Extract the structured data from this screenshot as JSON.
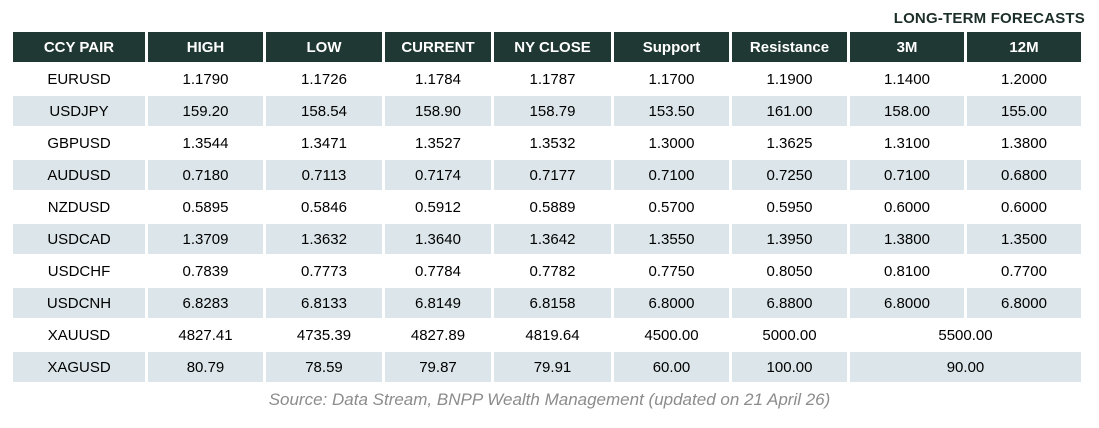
{
  "header_note": "LONG-TERM FORECASTS",
  "chart_data": {
    "type": "table",
    "columns": [
      "CCY PAIR",
      "HIGH",
      "LOW",
      "CURRENT",
      "NY CLOSE",
      "Support",
      "Resistance",
      "3M",
      "12M"
    ],
    "rows": [
      {
        "pair": "EURUSD",
        "high": "1.1790",
        "low": "1.1726",
        "current": "1.1784",
        "ny_close": "1.1787",
        "support": "1.1700",
        "resistance": "1.1900",
        "forecast_3m": "1.1400",
        "forecast_12m": "1.2000"
      },
      {
        "pair": "USDJPY",
        "high": "159.20",
        "low": "158.54",
        "current": "158.90",
        "ny_close": "158.79",
        "support": "153.50",
        "resistance": "161.00",
        "forecast_3m": "158.00",
        "forecast_12m": "155.00"
      },
      {
        "pair": "GBPUSD",
        "high": "1.3544",
        "low": "1.3471",
        "current": "1.3527",
        "ny_close": "1.3532",
        "support": "1.3000",
        "resistance": "1.3625",
        "forecast_3m": "1.3100",
        "forecast_12m": "1.3800"
      },
      {
        "pair": "AUDUSD",
        "high": "0.7180",
        "low": "0.7113",
        "current": "0.7174",
        "ny_close": "0.7177",
        "support": "0.7100",
        "resistance": "0.7250",
        "forecast_3m": "0.7100",
        "forecast_12m": "0.6800"
      },
      {
        "pair": "NZDUSD",
        "high": "0.5895",
        "low": "0.5846",
        "current": "0.5912",
        "ny_close": "0.5889",
        "support": "0.5700",
        "resistance": "0.5950",
        "forecast_3m": "0.6000",
        "forecast_12m": "0.6000"
      },
      {
        "pair": "USDCAD",
        "high": "1.3709",
        "low": "1.3632",
        "current": "1.3640",
        "ny_close": "1.3642",
        "support": "1.3550",
        "resistance": "1.3950",
        "forecast_3m": "1.3800",
        "forecast_12m": "1.3500"
      },
      {
        "pair": "USDCHF",
        "high": "0.7839",
        "low": "0.7773",
        "current": "0.7784",
        "ny_close": "0.7782",
        "support": "0.7750",
        "resistance": "0.8050",
        "forecast_3m": "0.8100",
        "forecast_12m": "0.7700"
      },
      {
        "pair": "USDCNH",
        "high": "6.8283",
        "low": "6.8133",
        "current": "6.8149",
        "ny_close": "6.8158",
        "support": "6.8000",
        "resistance": "6.8800",
        "forecast_3m": "6.8000",
        "forecast_12m": "6.8000"
      },
      {
        "pair": "XAUUSD",
        "high": "4827.41",
        "low": "4735.39",
        "current": "4827.89",
        "ny_close": "4819.64",
        "support": "4500.00",
        "resistance": "5000.00",
        "forecast_3m_12m": "5500.00"
      },
      {
        "pair": "XAGUSD",
        "high": "80.79",
        "low": "78.59",
        "current": "79.87",
        "ny_close": "79.91",
        "support": "60.00",
        "resistance": "100.00",
        "forecast_3m_12m": "90.00"
      }
    ]
  },
  "footer": {
    "source": "Source: Data Stream, BNPP Wealth Management (updated on 21 April 26)"
  },
  "colors": {
    "header_bg": "#1f3833",
    "row_alt_bg": "#dce6ea",
    "header_text": "#ffffff",
    "note_text": "#1c2e29",
    "source_text": "#8c8c8c"
  }
}
